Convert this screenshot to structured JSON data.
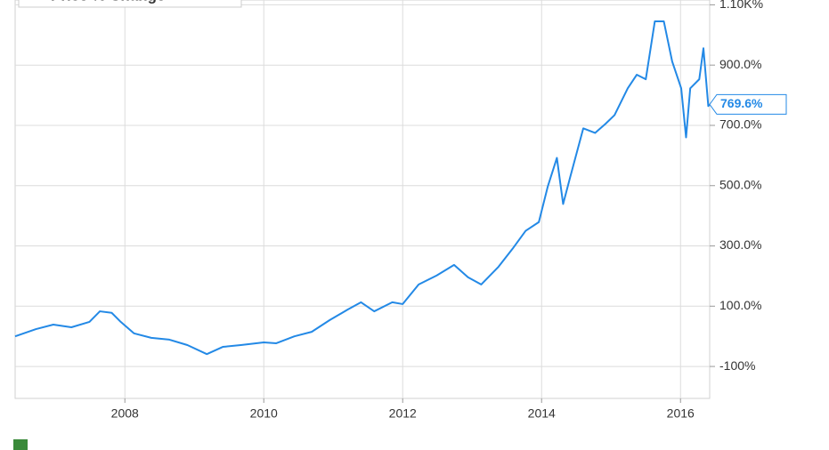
{
  "chart_data": {
    "type": "line",
    "series": [
      {
        "name": "Price % Change",
        "color": "#2389e6",
        "x": [
          2006.42,
          2006.72,
          2006.97,
          2007.23,
          2007.49,
          2007.64,
          2007.81,
          2007.94,
          2008.13,
          2008.38,
          2008.64,
          2008.9,
          2009.18,
          2009.41,
          2009.67,
          2010.0,
          2010.18,
          2010.44,
          2010.69,
          2010.95,
          2011.21,
          2011.4,
          2011.59,
          2011.85,
          2012.0,
          2012.23,
          2012.49,
          2012.74,
          2012.94,
          2013.13,
          2013.38,
          2013.58,
          2013.77,
          2013.96,
          2014.09,
          2014.22,
          2014.31,
          2014.41,
          2014.6,
          2014.77,
          2014.92,
          2015.05,
          2015.24,
          2015.37,
          2015.5,
          2015.63,
          2015.76,
          2015.88,
          2016.01,
          2016.08,
          2016.14,
          2016.27,
          2016.33,
          2016.4,
          2016.42
        ],
        "values": [
          0,
          24,
          39,
          30,
          48,
          83,
          78,
          48,
          10,
          -5,
          -11,
          -29,
          -59,
          -35,
          -29,
          -20,
          -23,
          0,
          15,
          54,
          89,
          113,
          83,
          113,
          107,
          172,
          202,
          237,
          196,
          172,
          231,
          290,
          350,
          379,
          498,
          592,
          439,
          527,
          690,
          675,
          705,
          734,
          823,
          868,
          853,
          1045,
          1045,
          912,
          823,
          660,
          823,
          853,
          956,
          764,
          769.6
        ],
        "value_labels": [
          null,
          null,
          null,
          null,
          null,
          null,
          null,
          null,
          null,
          null,
          null,
          null,
          null,
          null,
          null,
          null,
          null,
          null,
          null,
          null,
          null,
          null,
          null,
          null,
          null,
          null,
          null,
          null,
          null,
          null,
          null,
          null,
          null,
          null,
          null,
          null,
          null,
          null,
          null,
          null,
          null,
          null,
          null,
          null,
          null,
          null,
          null,
          null,
          null,
          null,
          null,
          null,
          null,
          null,
          "769.6%"
        ]
      }
    ],
    "xlim": [
      2006.42,
      2016.42
    ],
    "xticks": [
      2008,
      2010,
      2012,
      2014,
      2016
    ],
    "ylim": [
      -206,
      1116
    ],
    "yticks": [
      {
        "value": -100,
        "label": "-100%"
      },
      {
        "value": 100,
        "label": "100.0%"
      },
      {
        "value": 300,
        "label": "300.0%"
      },
      {
        "value": 500,
        "label": "500.0%"
      },
      {
        "value": 700,
        "label": "700.0%"
      },
      {
        "value": 900,
        "label": "900.0%"
      },
      {
        "value": 1100,
        "label": "1.10K%"
      }
    ],
    "grid": true,
    "legend": "top-left"
  }
}
